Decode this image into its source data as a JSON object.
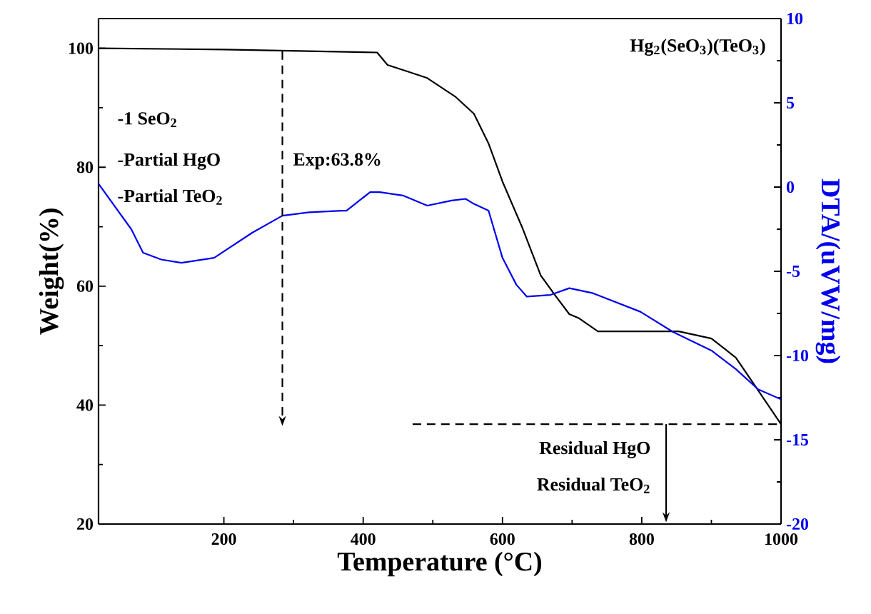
{
  "chart_data": {
    "type": "line",
    "title": "Hg$_{2}$(SeO$_{3}$)(TeO$_{3}$)",
    "xlabel": "Temperature (°C)",
    "ylabel": "Weight(%)",
    "y2label": "DTA/(uVW/mg)",
    "xlim": [
      20,
      1000
    ],
    "xticks": [
      200,
      400,
      600,
      800,
      1000
    ],
    "ylim": [
      20,
      105
    ],
    "yticks": [
      20,
      40,
      60,
      80,
      100
    ],
    "y2lim": [
      -20,
      10
    ],
    "y2ticks": [
      -20,
      -15,
      -10,
      -5,
      0,
      5,
      10
    ],
    "marker": "none",
    "grid": false,
    "annotations": [
      "-1 SeO$_{2}$",
      "-Partial HgO",
      "-Partial TeO$_{2}$",
      "Exp:63.8%",
      "Residual HgO",
      "Residual TeO$_{2}$"
    ],
    "series": [
      {
        "color": "#000000",
        "line_style": "solid",
        "x": [
          20,
          200,
          420,
          435,
          461,
          492,
          533,
          559,
          580,
          600,
          629,
          655,
          676,
          696,
          710,
          737,
          800,
          853,
          900,
          935,
          967,
          1000
        ],
        "values": [
          100,
          99.8,
          99.3,
          97.2,
          96.2,
          95,
          91.8,
          89,
          84,
          77.6,
          69.7,
          61.8,
          58.4,
          55.3,
          54.6,
          52.4,
          52.4,
          52.4,
          51.2,
          48,
          42.5,
          36.8
        ]
      },
      {
        "color": "#0000ee",
        "line_style": "solid",
        "axis": "y2",
        "x": [
          20,
          67,
          84,
          110,
          139,
          186,
          241,
          284,
          322,
          369,
          376,
          410,
          424,
          457,
          492,
          527,
          547,
          559,
          580,
          600,
          620,
          635,
          669,
          696,
          730,
          798,
          845,
          900,
          935,
          967,
          1000
        ],
        "values": [
          0.2,
          -2.5,
          -3.9,
          -4.3,
          -4.5,
          -4.2,
          -2.7,
          -1.7,
          -1.5,
          -1.4,
          -1.4,
          -0.3,
          -0.3,
          -0.5,
          -1.1,
          -0.8,
          -0.7,
          -1.0,
          -1.4,
          -4.2,
          -5.8,
          -6.5,
          -6.4,
          -6.0,
          -6.3,
          -7.4,
          -8.6,
          -9.7,
          -10.8,
          -12,
          -12.6
        ]
      },
      {
        "color": "#000000",
        "line_style": "dashed",
        "x": [
          471,
          1000
        ],
        "values": [
          36.8,
          36.8
        ]
      }
    ]
  }
}
